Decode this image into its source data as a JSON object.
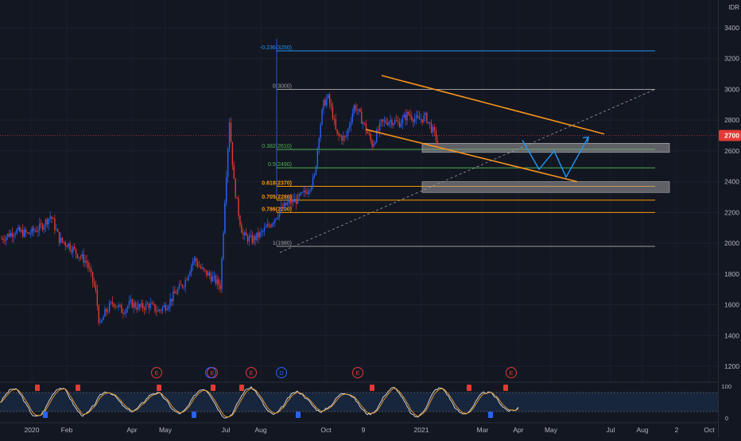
{
  "chart_data": {
    "type": "candlestick",
    "currency": "IDR",
    "last_price": "2700",
    "colors": {
      "background": "#131722",
      "up": "#2962ff",
      "down": "#e53935",
      "orange": "#f7931a",
      "fib_top": "#2196f3",
      "fib_mid": "#9e9e9e",
      "fib_green": "#4caf50",
      "fib_orange": "#ff9800",
      "path": "#2196f3",
      "osc_fast": "#e0e0e0",
      "osc_slow": "#f0a030"
    },
    "y_axis": {
      "min": 1100,
      "max": 3500,
      "ticks": [
        "3400",
        "3200",
        "3000",
        "2800",
        "2600",
        "2400",
        "2200",
        "2000",
        "1800",
        "1600",
        "1400",
        "1200"
      ]
    },
    "x_axis": {
      "labels": [
        "2020",
        "Feb",
        "Apr",
        "May",
        "Jul",
        "Aug",
        "Oct",
        "9",
        "2021",
        "Mar",
        "Apr",
        "May",
        "Jul",
        "Aug",
        "2",
        "Oct"
      ]
    },
    "fib_levels": [
      {
        "label": "-0.236(3250)",
        "value": 3250
      },
      {
        "label": "0(3000)",
        "value": 3000
      },
      {
        "label": "0.382(2610)",
        "value": 2610
      },
      {
        "label": "0.5(2490)",
        "value": 2490
      },
      {
        "label": "0.618(2370)",
        "value": 2370
      },
      {
        "label": "0.705(2280)",
        "value": 2280
      },
      {
        "label": "0.786(2200)",
        "value": 2200
      },
      {
        "label": "1(1980)",
        "value": 1980
      }
    ],
    "zones": [
      {
        "from": 2590,
        "to": 2650
      },
      {
        "from": 2330,
        "to": 2400
      }
    ],
    "price_path": [
      {
        "t": 0,
        "p": 2030
      },
      {
        "t": 3,
        "p": 2080
      },
      {
        "t": 6,
        "p": 2060
      },
      {
        "t": 9,
        "p": 2110
      },
      {
        "t": 11,
        "p": 2180
      },
      {
        "t": 13,
        "p": 2020
      },
      {
        "t": 15,
        "p": 1990
      },
      {
        "t": 17,
        "p": 1930
      },
      {
        "t": 19,
        "p": 1880
      },
      {
        "t": 21,
        "p": 1700
      },
      {
        "t": 22,
        "p": 1450
      },
      {
        "t": 23,
        "p": 1540
      },
      {
        "t": 25,
        "p": 1620
      },
      {
        "t": 27,
        "p": 1560
      },
      {
        "t": 29,
        "p": 1610
      },
      {
        "t": 31,
        "p": 1580
      },
      {
        "t": 33,
        "p": 1600
      },
      {
        "t": 35,
        "p": 1560
      },
      {
        "t": 37,
        "p": 1600
      },
      {
        "t": 39,
        "p": 1680
      },
      {
        "t": 41,
        "p": 1750
      },
      {
        "t": 43,
        "p": 1900
      },
      {
        "t": 45,
        "p": 1820
      },
      {
        "t": 47,
        "p": 1780
      },
      {
        "t": 49,
        "p": 1720
      },
      {
        "t": 50,
        "p": 2300
      },
      {
        "t": 51,
        "p": 2800
      },
      {
        "t": 52,
        "p": 2400
      },
      {
        "t": 53,
        "p": 2200
      },
      {
        "t": 54,
        "p": 2050
      },
      {
        "t": 56,
        "p": 2020
      },
      {
        "t": 58,
        "p": 2060
      },
      {
        "t": 60,
        "p": 2120
      },
      {
        "t": 62,
        "p": 2200
      },
      {
        "t": 64,
        "p": 2260
      },
      {
        "t": 66,
        "p": 2280
      },
      {
        "t": 68,
        "p": 2330
      },
      {
        "t": 70,
        "p": 2420
      },
      {
        "t": 71,
        "p": 2700
      },
      {
        "t": 72,
        "p": 2900
      },
      {
        "t": 73,
        "p": 2950
      },
      {
        "t": 74,
        "p": 2850
      },
      {
        "t": 75,
        "p": 2700
      },
      {
        "t": 77,
        "p": 2680
      },
      {
        "t": 79,
        "p": 2900
      },
      {
        "t": 81,
        "p": 2780
      },
      {
        "t": 83,
        "p": 2640
      },
      {
        "t": 85,
        "p": 2780
      },
      {
        "t": 87,
        "p": 2800
      },
      {
        "t": 89,
        "p": 2780
      },
      {
        "t": 91,
        "p": 2840
      },
      {
        "t": 93,
        "p": 2800
      },
      {
        "t": 95,
        "p": 2820
      },
      {
        "t": 97,
        "p": 2700
      },
      {
        "t": 98,
        "p": 2620
      }
    ],
    "projection": [
      2670,
      2480,
      2600,
      2430,
      2690
    ],
    "oscillator": {
      "ticks": [
        "100",
        "0"
      ],
      "bands": [
        80,
        20
      ]
    },
    "events": [
      "E",
      "E",
      "E",
      "D",
      "E",
      "E"
    ]
  }
}
